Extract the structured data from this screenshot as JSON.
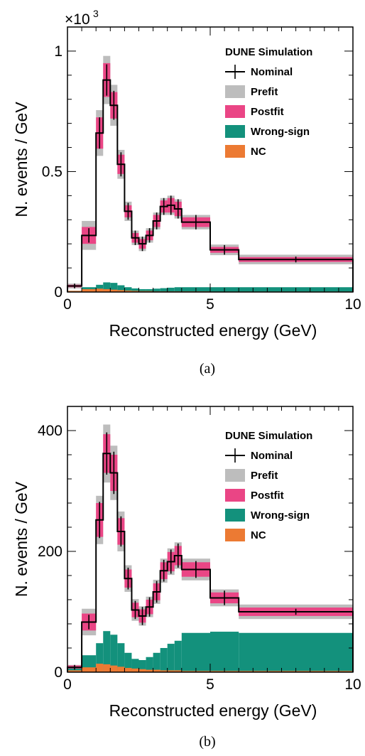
{
  "colors": {
    "prefit": "#bdbdbd",
    "postfit": "#ea4585",
    "wrong_sign": "#13917c",
    "nc": "#ec7a33",
    "nominal": "#000000"
  },
  "chart_data": [
    {
      "type": "histogram",
      "panel": "(a)",
      "multiplier_base": "×10",
      "multiplier_exp": "3",
      "xlabel": "Reconstructed energy (GeV)",
      "ylabel": "N. events / GeV",
      "xlim": [
        0,
        10
      ],
      "ylim": [
        0,
        1.1
      ],
      "xticks": [
        {
          "v": 0,
          "label": "0"
        },
        {
          "v": 5,
          "label": "5"
        },
        {
          "v": 10,
          "label": "10"
        }
      ],
      "yticks": [
        {
          "v": 0,
          "label": "0"
        },
        {
          "v": 0.5,
          "label": "0.5"
        },
        {
          "v": 1,
          "label": "1"
        }
      ],
      "legend": {
        "title": "DUNE Simulation",
        "entries": [
          {
            "key": "nominal",
            "label": "Nominal"
          },
          {
            "key": "prefit",
            "label": "Prefit"
          },
          {
            "key": "postfit",
            "label": "Postfit"
          },
          {
            "key": "wrong_sign",
            "label": "Wrong-sign"
          },
          {
            "key": "nc",
            "label": "NC"
          }
        ]
      },
      "bin_edges": [
        0,
        0.5,
        1.0,
        1.25,
        1.5,
        1.75,
        2.0,
        2.25,
        2.5,
        2.75,
        3.0,
        3.25,
        3.5,
        3.75,
        4.0,
        5.0,
        6.0,
        10.0
      ],
      "nominal": [
        0.025,
        0.235,
        0.66,
        0.88,
        0.775,
        0.53,
        0.335,
        0.225,
        0.2,
        0.235,
        0.295,
        0.355,
        0.36,
        0.345,
        0.29,
        0.175,
        0.135
      ],
      "nominal_err": [
        0.01,
        0.03,
        0.065,
        0.065,
        0.06,
        0.05,
        0.035,
        0.03,
        0.03,
        0.03,
        0.035,
        0.035,
        0.04,
        0.04,
        0.03,
        0.02,
        0.012
      ],
      "prefit_err": [
        0.01,
        0.06,
        0.095,
        0.1,
        0.085,
        0.06,
        0.04,
        0.03,
        0.03,
        0.03,
        0.035,
        0.035,
        0.04,
        0.04,
        0.03,
        0.022,
        0.02
      ],
      "postfit_err": [
        0.005,
        0.035,
        0.065,
        0.07,
        0.055,
        0.04,
        0.025,
        0.02,
        0.02,
        0.02,
        0.025,
        0.025,
        0.03,
        0.03,
        0.02,
        0.012,
        0.01
      ],
      "wrong_sign": [
        0.005,
        0.02,
        0.03,
        0.04,
        0.038,
        0.028,
        0.02,
        0.015,
        0.012,
        0.012,
        0.014,
        0.016,
        0.018,
        0.02,
        0.02,
        0.02,
        0.02
      ],
      "nc": [
        0.005,
        0.012,
        0.014,
        0.012,
        0.01,
        0.008,
        0.006,
        0.005,
        0.004,
        0.004,
        0.003,
        0.003,
        0.003,
        0.003,
        0.003,
        0.002,
        0.002
      ],
      "caption": "(a)"
    },
    {
      "type": "histogram",
      "panel": "(b)",
      "xlabel": "Reconstructed energy (GeV)",
      "ylabel": "N. events / GeV",
      "xlim": [
        0,
        10
      ],
      "ylim": [
        0,
        440
      ],
      "xticks": [
        {
          "v": 0,
          "label": "0"
        },
        {
          "v": 5,
          "label": "5"
        },
        {
          "v": 10,
          "label": "10"
        }
      ],
      "yticks": [
        {
          "v": 0,
          "label": "0"
        },
        {
          "v": 200,
          "label": "200"
        },
        {
          "v": 400,
          "label": "400"
        }
      ],
      "legend": {
        "title": "DUNE Simulation",
        "entries": [
          {
            "key": "nominal",
            "label": "Nominal"
          },
          {
            "key": "prefit",
            "label": "Prefit"
          },
          {
            "key": "postfit",
            "label": "Postfit"
          },
          {
            "key": "wrong_sign",
            "label": "Wrong-sign"
          },
          {
            "key": "nc",
            "label": "NC"
          }
        ]
      },
      "bin_edges": [
        0,
        0.5,
        1.0,
        1.25,
        1.5,
        1.75,
        2.0,
        2.25,
        2.5,
        2.75,
        3.0,
        3.25,
        3.5,
        3.75,
        4.0,
        5.0,
        6.0,
        10.0
      ],
      "nominal": [
        8,
        83,
        252,
        362,
        330,
        233,
        155,
        103,
        93,
        108,
        133,
        168,
        183,
        193,
        170,
        123,
        100
      ],
      "nominal_err": [
        4,
        12,
        30,
        35,
        35,
        25,
        18,
        15,
        15,
        16,
        18,
        18,
        20,
        20,
        14,
        12,
        5
      ],
      "prefit_err": [
        4,
        22,
        40,
        48,
        45,
        33,
        22,
        18,
        16,
        17,
        20,
        20,
        22,
        22,
        18,
        14,
        12
      ],
      "postfit_err": [
        3,
        14,
        28,
        32,
        30,
        22,
        15,
        12,
        11,
        12,
        14,
        14,
        16,
        16,
        12,
        9,
        7
      ],
      "wrong_sign": [
        6,
        28,
        48,
        68,
        62,
        48,
        32,
        22,
        20,
        25,
        32,
        40,
        47,
        52,
        65,
        67,
        65
      ],
      "nc": [
        3,
        8,
        14,
        13,
        11,
        9,
        7,
        6,
        5,
        4,
        4,
        3,
        3,
        3,
        2,
        2,
        2
      ],
      "caption": "(b)"
    }
  ]
}
